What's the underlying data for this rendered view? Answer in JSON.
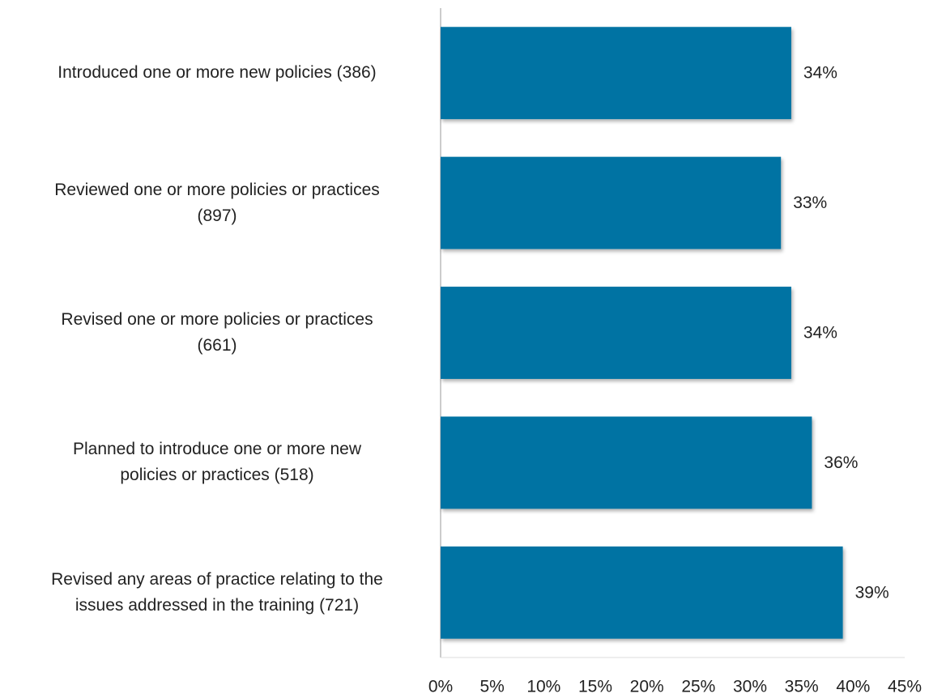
{
  "chart_data": {
    "type": "bar",
    "orientation": "horizontal",
    "categories": [
      "Introduced one or more new policies (386)",
      "Reviewed one or more policies or practices\n(897)",
      "Revised one or more policies or practices\n(661)",
      "Planned to introduce one or more new\npolicies or practices (518)",
      "Revised any areas of practice relating to the\nissues addressed in the training (721)"
    ],
    "values": [
      34,
      33,
      34,
      36,
      39
    ],
    "value_labels": [
      "34%",
      "33%",
      "34%",
      "36%",
      "39%"
    ],
    "color": "#0073a3",
    "xlim": [
      0,
      45
    ],
    "xticks": [
      {
        "value": 0,
        "label": "0%"
      },
      {
        "value": 5,
        "label": "5%"
      },
      {
        "value": 10,
        "label": "10%"
      },
      {
        "value": 15,
        "label": "15%"
      },
      {
        "value": 20,
        "label": "20%"
      },
      {
        "value": 25,
        "label": "25%"
      },
      {
        "value": 30,
        "label": "30%"
      },
      {
        "value": 35,
        "label": "35%"
      },
      {
        "value": 40,
        "label": "40%"
      },
      {
        "value": 45,
        "label": "45%"
      }
    ],
    "grid": false
  }
}
